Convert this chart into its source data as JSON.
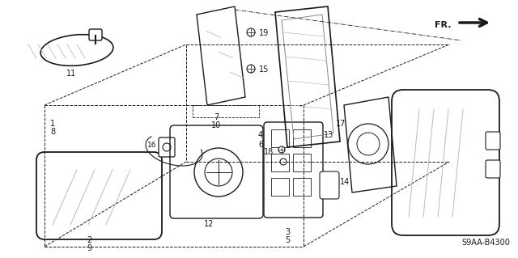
{
  "bg_color": "#ffffff",
  "diagram_code": "S9AA-B4300",
  "dark": "#1a1a1a",
  "gray": "#888888",
  "light_gray": "#bbbbbb"
}
